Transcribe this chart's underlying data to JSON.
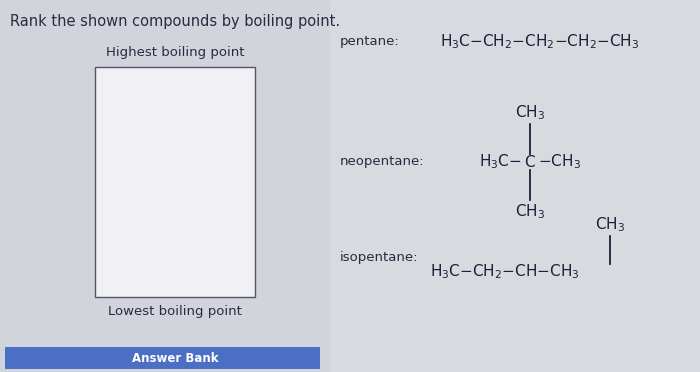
{
  "title": "Rank the shown compounds by boiling point.",
  "bg_color": "#cdd0d8",
  "left_bg": "#d6d8e0",
  "right_bg": "#dcdde3",
  "box_color": "#f0f0f5",
  "box_edge_color": "#555566",
  "highest_label": "Highest boiling point",
  "lowest_label": "Lowest boiling point",
  "answer_bank_label": "Answer Bank",
  "answer_bank_color": "#4a6fc4",
  "pentane_label": "pentane:",
  "neopentane_label": "neopentane:",
  "isopentane_label": "isopentane:",
  "title_fontsize": 10.5,
  "label_fontsize": 9.5,
  "formula_fontsize": 11,
  "sub_fontsize": 8,
  "text_color": "#2a2a40",
  "formula_color": "#1e1e3a"
}
